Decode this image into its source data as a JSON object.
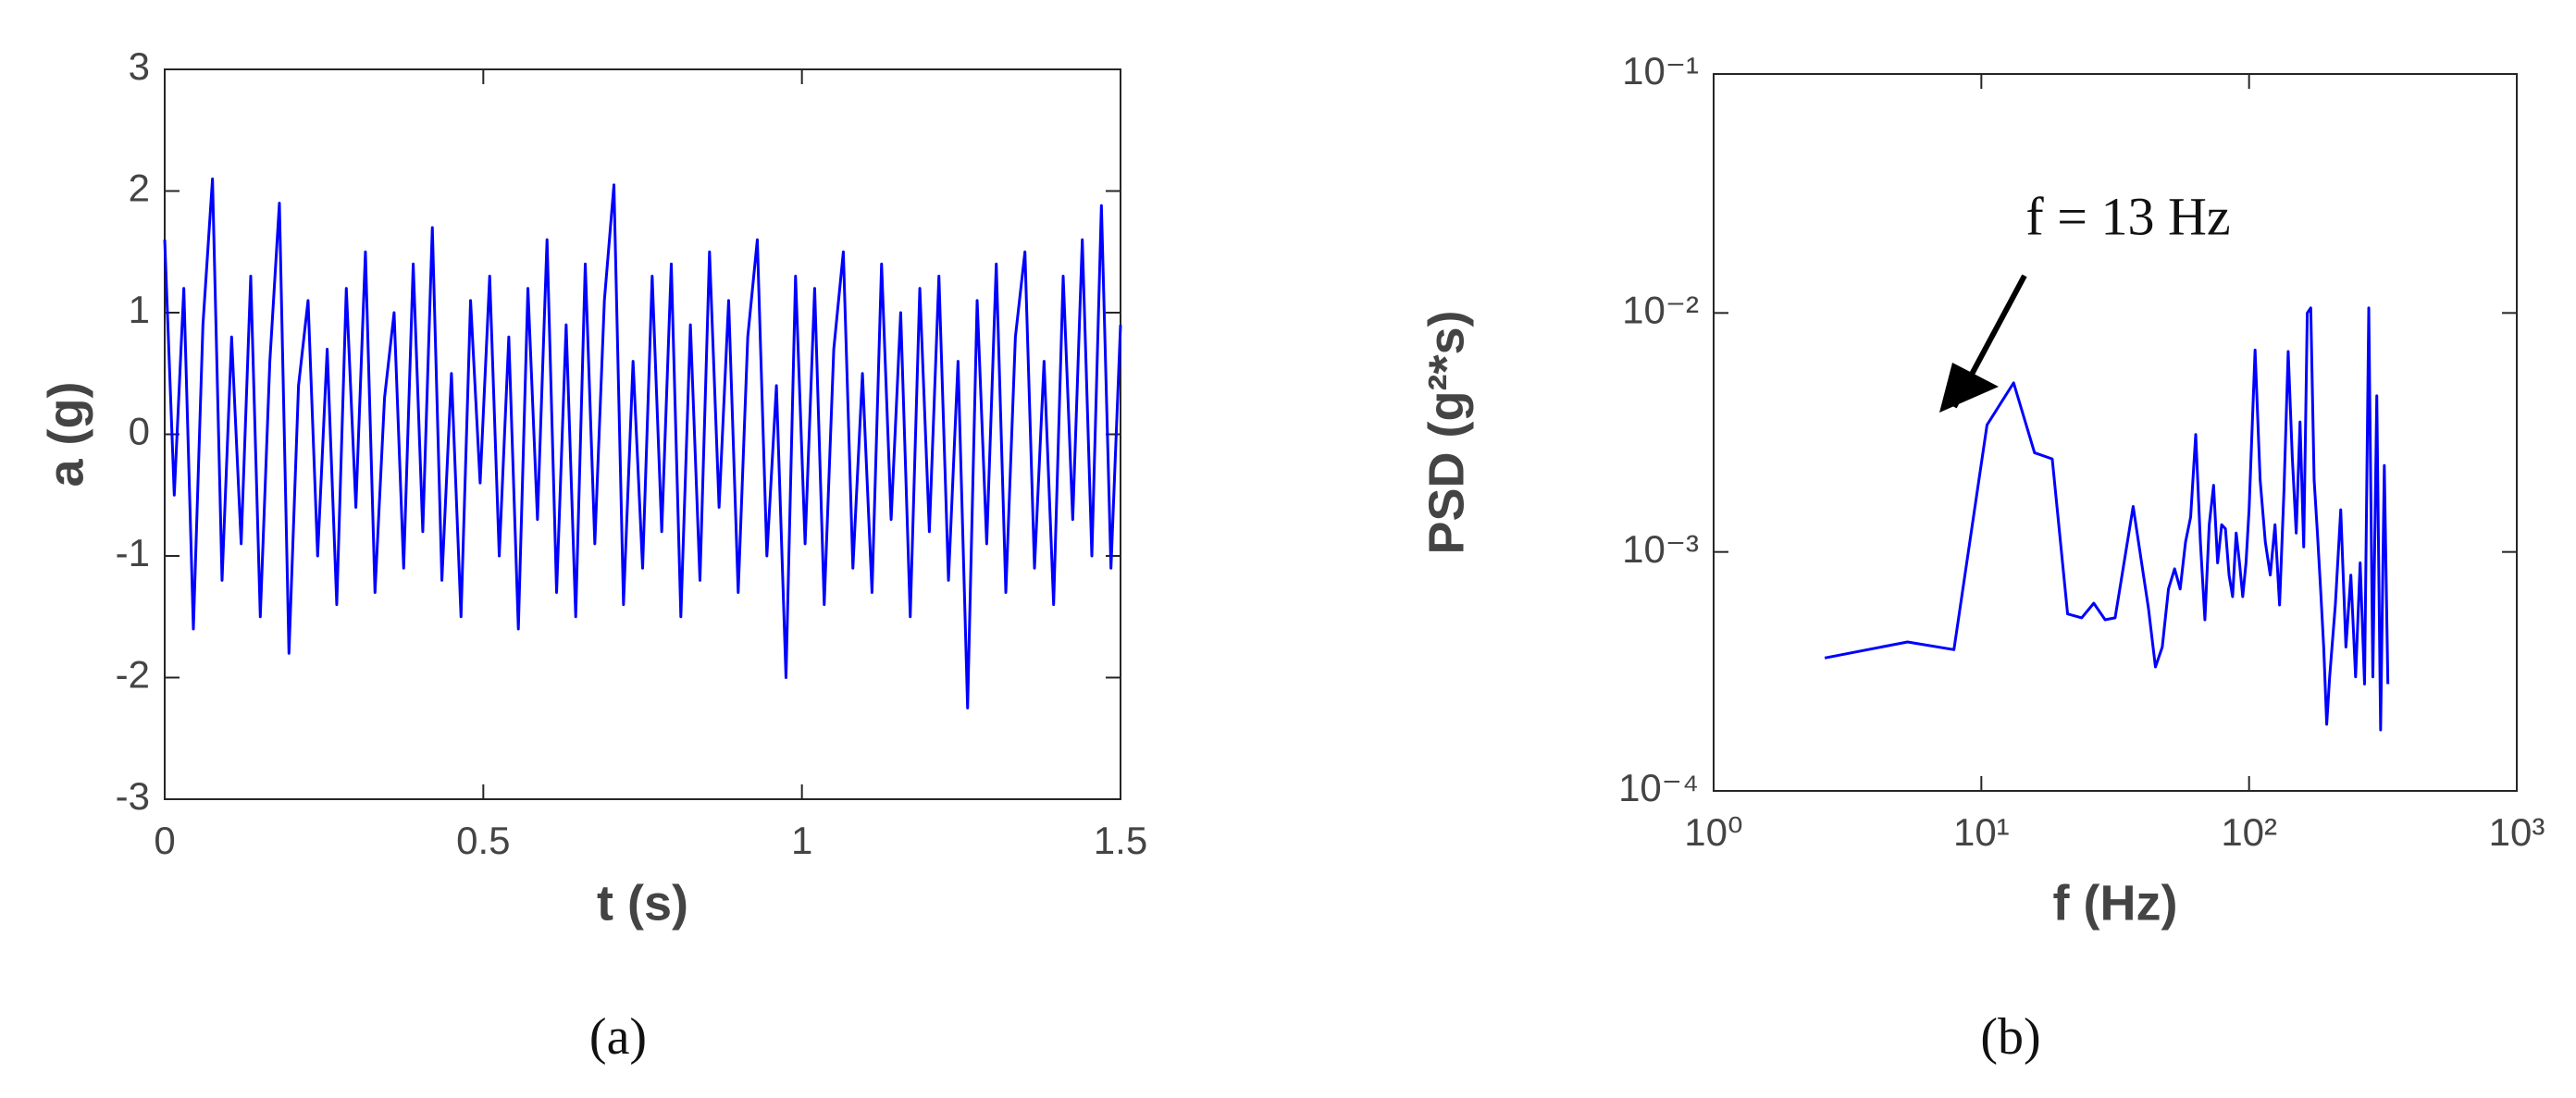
{
  "chart_data": [
    {
      "type": "line",
      "caption": "(a)",
      "x_label": "t (s)",
      "y_label": "a (g)",
      "xlim": [
        0,
        1.5
      ],
      "xticks": [
        0,
        0.5,
        1,
        1.5
      ],
      "ylim": [
        -3,
        3
      ],
      "yticks": [
        -3,
        -2,
        -1,
        0,
        1,
        2,
        3
      ],
      "color": "#0000ff",
      "x": [
        0,
        0.015,
        0.03,
        0.045,
        0.06,
        0.075,
        0.09,
        0.105,
        0.12,
        0.135,
        0.15,
        0.165,
        0.18,
        0.195,
        0.21,
        0.225,
        0.24,
        0.255,
        0.27,
        0.285,
        0.3,
        0.315,
        0.33,
        0.345,
        0.36,
        0.375,
        0.39,
        0.405,
        0.42,
        0.435,
        0.45,
        0.465,
        0.48,
        0.495,
        0.51,
        0.525,
        0.54,
        0.555,
        0.57,
        0.585,
        0.6,
        0.615,
        0.63,
        0.645,
        0.66,
        0.675,
        0.69,
        0.705,
        0.72,
        0.735,
        0.75,
        0.765,
        0.78,
        0.795,
        0.81,
        0.825,
        0.84,
        0.855,
        0.87,
        0.885,
        0.9,
        0.915,
        0.93,
        0.945,
        0.96,
        0.975,
        0.99,
        1.005,
        1.02,
        1.035,
        1.05,
        1.065,
        1.08,
        1.095,
        1.11,
        1.125,
        1.14,
        1.155,
        1.17,
        1.185,
        1.2,
        1.215,
        1.23,
        1.245,
        1.26,
        1.275,
        1.29,
        1.305,
        1.32,
        1.335,
        1.35,
        1.365,
        1.38,
        1.395,
        1.41,
        1.425,
        1.44,
        1.455,
        1.47,
        1.485,
        1.5
      ],
      "values": [
        1.6,
        -0.5,
        1.2,
        -1.6,
        0.9,
        2.1,
        -1.2,
        0.8,
        -0.9,
        1.3,
        -1.5,
        0.6,
        1.9,
        -1.8,
        0.4,
        1.1,
        -1.0,
        0.7,
        -1.4,
        1.2,
        -0.6,
        1.5,
        -1.3,
        0.3,
        1.0,
        -1.1,
        1.4,
        -0.8,
        1.7,
        -1.2,
        0.5,
        -1.5,
        1.1,
        -0.4,
        1.3,
        -1.0,
        0.8,
        -1.6,
        1.2,
        -0.7,
        1.6,
        -1.3,
        0.9,
        -1.5,
        1.4,
        -0.9,
        1.1,
        2.05,
        -1.4,
        0.6,
        -1.1,
        1.3,
        -0.8,
        1.4,
        -1.5,
        0.9,
        -1.2,
        1.5,
        -0.6,
        1.1,
        -1.3,
        0.8,
        1.6,
        -1.0,
        0.4,
        -2.0,
        1.3,
        -0.9,
        1.2,
        -1.4,
        0.7,
        1.5,
        -1.1,
        0.5,
        -1.3,
        1.4,
        -0.7,
        1.0,
        -1.5,
        1.2,
        -0.8,
        1.3,
        -1.2,
        0.6,
        -2.25,
        1.1,
        -0.9,
        1.4,
        -1.3,
        0.8,
        1.5,
        -1.1,
        0.6,
        -1.4,
        1.3,
        -0.7,
        1.6,
        -1.0,
        1.88,
        -1.1,
        0.9
      ]
    },
    {
      "type": "line",
      "caption": "(b)",
      "x_label": "f (Hz)",
      "y_label": "PSD (g²*s)",
      "annotation": "f = 13 Hz",
      "xlog": true,
      "ylog": true,
      "xlim": [
        1,
        1000
      ],
      "xticks": [
        {
          "value": 1,
          "label": "10⁰"
        },
        {
          "value": 10,
          "label": "10¹"
        },
        {
          "value": 100,
          "label": "10²"
        },
        {
          "value": 1000,
          "label": "10³"
        }
      ],
      "ylim": [
        0.0001,
        0.1
      ],
      "yticks": [
        {
          "value": 0.0001,
          "label": "10⁻⁴"
        },
        {
          "value": 0.001,
          "label": "10⁻³"
        },
        {
          "value": 0.01,
          "label": "10⁻²"
        },
        {
          "value": 0.1,
          "label": "10⁻¹"
        }
      ],
      "color": "#0000ff",
      "x": [
        2.6,
        5.3,
        7.9,
        10.5,
        13.2,
        15.8,
        18.4,
        21,
        23.7,
        26.3,
        29,
        31.6,
        36.9,
        42.1,
        44.7,
        47.4,
        50,
        52.7,
        55.3,
        57.9,
        60.5,
        63.2,
        65.8,
        68.4,
        71,
        73.7,
        76.3,
        79,
        81.6,
        84.2,
        86.8,
        89.5,
        92.1,
        94.7,
        97.4,
        100,
        105.3,
        110,
        115,
        120,
        125,
        130,
        135,
        140,
        145,
        150,
        155,
        160,
        165,
        170,
        175,
        180,
        185,
        190,
        195,
        200,
        210,
        220,
        230,
        240,
        250,
        260,
        270,
        280,
        290,
        300,
        310,
        320,
        330
      ],
      "values": [
        0.00036,
        0.00042,
        0.00039,
        0.0034,
        0.0051,
        0.0026,
        0.00245,
        0.00055,
        0.00053,
        0.00061,
        0.00052,
        0.00053,
        0.00155,
        0.00058,
        0.00033,
        0.0004,
        0.0007,
        0.00085,
        0.0007,
        0.0011,
        0.0014,
        0.0031,
        0.0011,
        0.00052,
        0.0013,
        0.0019,
        0.0009,
        0.0013,
        0.00125,
        0.0008,
        0.00065,
        0.0012,
        0.0009,
        0.00065,
        0.0009,
        0.0015,
        0.007,
        0.002,
        0.0011,
        0.0008,
        0.0013,
        0.0006,
        0.0018,
        0.0069,
        0.0025,
        0.0012,
        0.0035,
        0.00105,
        0.01,
        0.0105,
        0.002,
        0.0012,
        0.0007,
        0.0004,
        0.00019,
        0.0003,
        0.0006,
        0.0015,
        0.0004,
        0.0008,
        0.0003,
        0.0009,
        0.00028,
        0.0105,
        0.0003,
        0.0045,
        0.00018,
        0.0023,
        0.00028
      ]
    }
  ]
}
